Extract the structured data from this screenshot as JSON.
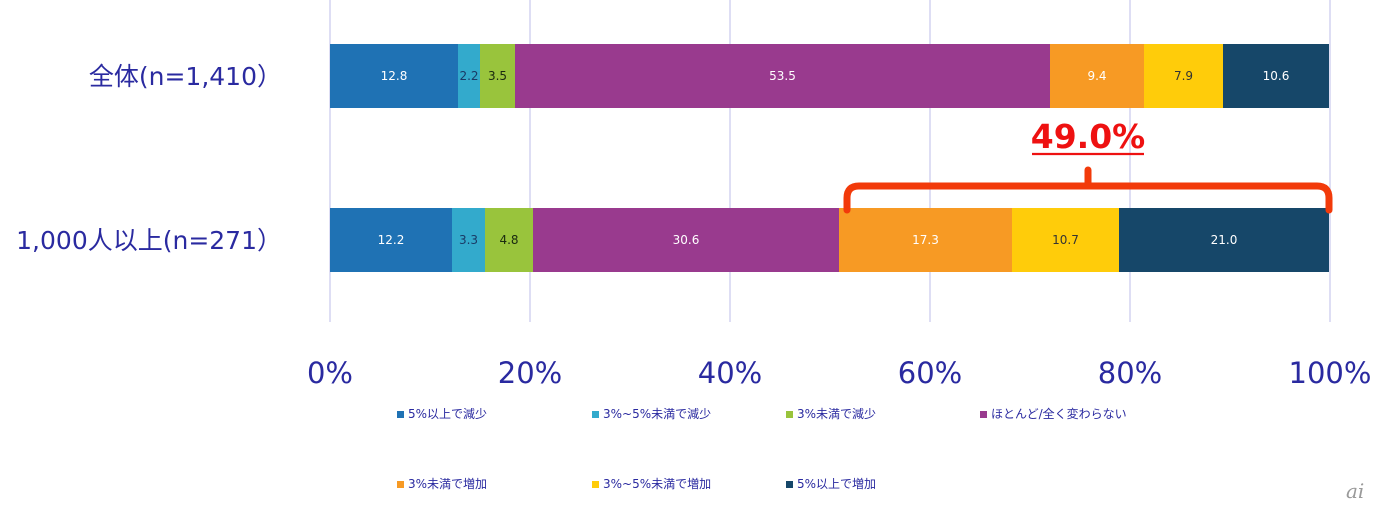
{
  "chart_data": {
    "type": "bar",
    "orientation": "horizontal",
    "stacked": "percent",
    "categories": [
      "全体(n=1,410）",
      "1,000人以上(n=271）"
    ],
    "series": [
      {
        "name": "5%以上で減少",
        "color": "#1f72b4",
        "label_color": "#ffffff",
        "values": [
          12.8,
          12.2
        ],
        "labels": [
          "12.8",
          "12.2"
        ]
      },
      {
        "name": "3%~5%未満で減少",
        "color": "#33aacc",
        "label_color": "#1a3a66",
        "values": [
          2.2,
          3.3
        ],
        "labels": [
          "2.2",
          "3.3"
        ]
      },
      {
        "name": "3%未満で減少",
        "color": "#99c43c",
        "label_color": "#1a2a10",
        "values": [
          3.5,
          4.8
        ],
        "labels": [
          "3.5",
          "4.8"
        ]
      },
      {
        "name": "ほとんど/全く変わらない",
        "color": "#993a8e",
        "label_color": "#ffffff",
        "values": [
          53.5,
          30.6
        ],
        "labels": [
          "53.5",
          "30.6"
        ]
      },
      {
        "name": "3%未満で増加",
        "color": "#f79a24",
        "label_color": "#ffffff",
        "values": [
          9.4,
          17.3
        ],
        "labels": [
          "9.4",
          "17.3"
        ]
      },
      {
        "name": "3%~5%未満で増加",
        "color": "#ffcc0a",
        "label_color": "#333333",
        "values": [
          7.9,
          10.7
        ],
        "labels": [
          "7.9",
          "10.7"
        ]
      },
      {
        "name": "5%以上で増加",
        "color": "#164769",
        "label_color": "#ffffff",
        "values": [
          10.6,
          21.0
        ],
        "labels": [
          "10.6",
          "21.0"
        ]
      }
    ],
    "xlim": [
      0,
      100
    ],
    "x_ticks": [
      "0%",
      "20%",
      "40%",
      "60%",
      "80%",
      "100%"
    ],
    "grid": true,
    "legend_position": "bottom",
    "annotation": {
      "text": "49.0%",
      "color": "#ee1111",
      "bracket_color": "#f23a0a",
      "category_index": 1,
      "from_series_index": 4,
      "to_series_index": 6
    },
    "title": "",
    "xlabel": "",
    "ylabel": ""
  },
  "watermark": "ai"
}
